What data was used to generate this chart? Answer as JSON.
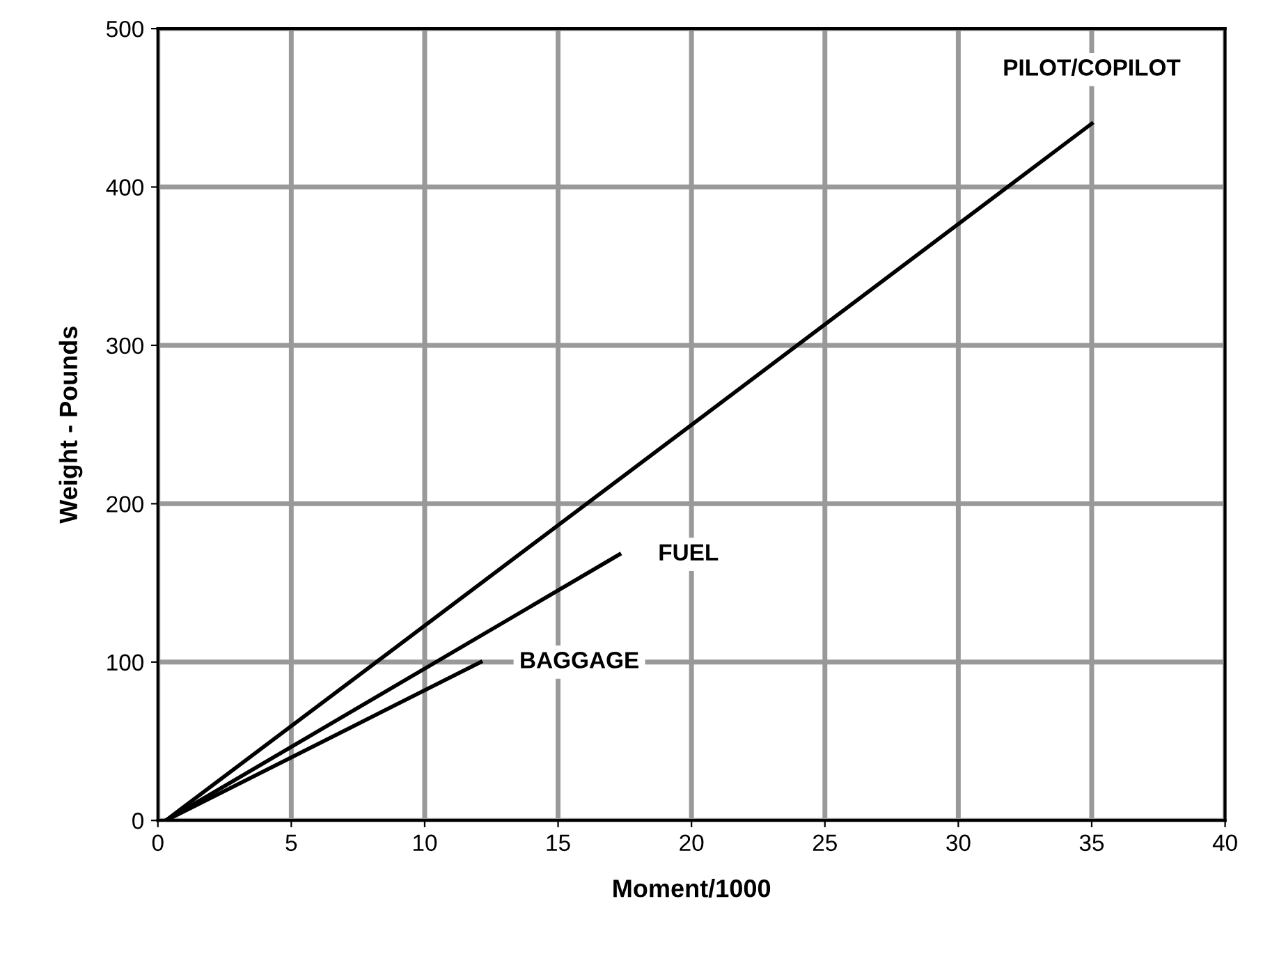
{
  "chart_data": {
    "type": "line",
    "xlabel": "Moment/1000",
    "ylabel": "Weight - Pounds",
    "xlim": [
      0,
      40
    ],
    "ylim": [
      0,
      500
    ],
    "xticks": [
      0,
      5,
      10,
      15,
      20,
      25,
      30,
      35,
      40
    ],
    "yticks": [
      0,
      100,
      200,
      300,
      400,
      500
    ],
    "grid": true,
    "legend": false,
    "marker": "none",
    "line_style": "solid",
    "series": [
      {
        "name": "PILOT/COPILOT",
        "color": "#000000",
        "x": [
          0.3,
          35
        ],
        "values": [
          0,
          440
        ]
      },
      {
        "name": "FUEL",
        "color": "#000000",
        "x": [
          0.3,
          17.3
        ],
        "values": [
          0,
          168
        ]
      },
      {
        "name": "BAGGAGE",
        "color": "#000000",
        "x": [
          0.3,
          12.1
        ],
        "values": [
          0,
          100
        ]
      }
    ]
  }
}
